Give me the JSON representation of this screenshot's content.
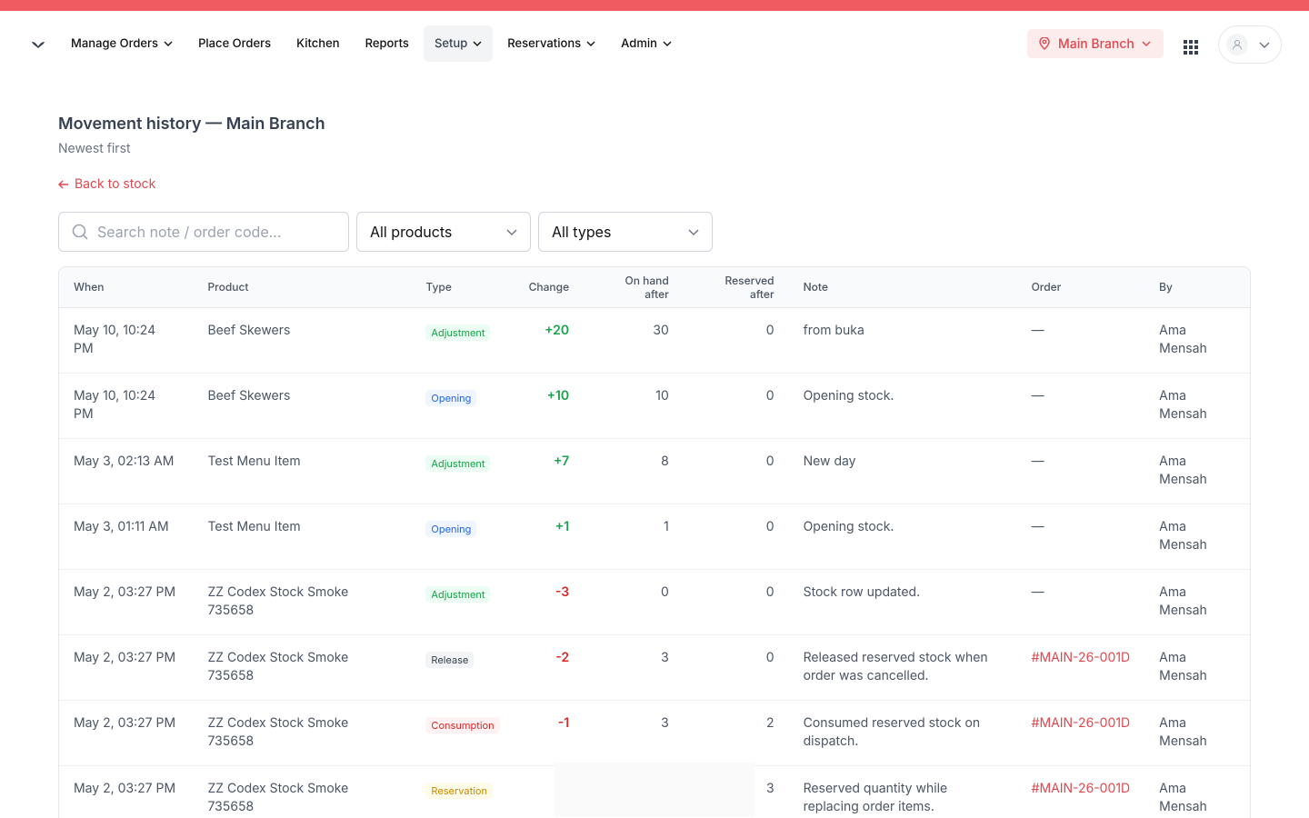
{
  "nav": {
    "items": [
      "Manage Orders",
      "Place Orders",
      "Kitchen",
      "Reports",
      "Setup",
      "Reservations",
      "Admin"
    ],
    "branch": "Main Branch"
  },
  "header": {
    "title": "Movement history — Main Branch",
    "subtitle": "Newest first",
    "back": "Back to stock"
  },
  "filters": {
    "search_placeholder": "Search note / order code...",
    "product": "All products",
    "type": "All types"
  },
  "table": {
    "columns": [
      "When",
      "Product",
      "Type",
      "Change",
      "On hand after",
      "Reserved after",
      "Note",
      "Order",
      "By"
    ],
    "rows": [
      {
        "when": "May 10, 10:24 PM",
        "product": "Beef Skewers",
        "type": "Adjustment",
        "badge": "green",
        "change": "+20",
        "change_color": "#16a34a",
        "on_hand": "30",
        "reserved": "0",
        "note": "from buka",
        "order": "—",
        "by": "Ama Mensah"
      },
      {
        "when": "May 10, 10:24 PM",
        "product": "Beef Skewers",
        "type": "Opening",
        "badge": "blue",
        "change": "+10",
        "change_color": "#16a34a",
        "on_hand": "10",
        "reserved": "0",
        "note": "Opening stock.",
        "order": "—",
        "by": "Ama Mensah"
      },
      {
        "when": "May 3, 02:13 AM",
        "product": "Test Menu Item",
        "type": "Adjustment",
        "badge": "green",
        "change": "+7",
        "change_color": "#16a34a",
        "on_hand": "8",
        "reserved": "0",
        "note": "New day",
        "order": "—",
        "by": "Ama Mensah"
      },
      {
        "when": "May 3, 01:11 AM",
        "product": "Test Menu Item",
        "type": "Opening",
        "badge": "blue",
        "change": "+1",
        "change_color": "#16a34a",
        "on_hand": "1",
        "reserved": "0",
        "note": "Opening stock.",
        "order": "—",
        "by": "Ama Mensah"
      },
      {
        "when": "May 2, 03:27 PM",
        "product": "ZZ Codex Stock Smoke 735658",
        "type": "Adjustment",
        "badge": "green",
        "change": "-3",
        "change_color": "#dc2626",
        "on_hand": "0",
        "reserved": "0",
        "note": "Stock row updated.",
        "order": "—",
        "by": "Ama Mensah"
      },
      {
        "when": "May 2, 03:27 PM",
        "product": "ZZ Codex Stock Smoke 735658",
        "type": "Release",
        "badge": "gray",
        "change": "-2",
        "change_color": "#dc2626",
        "on_hand": "3",
        "reserved": "0",
        "note": "Released reserved stock when order was cancelled.",
        "order": "#MAIN-26-001D",
        "by": "Ama Mensah"
      },
      {
        "when": "May 2, 03:27 PM",
        "product": "ZZ Codex Stock Smoke 735658",
        "type": "Consumption",
        "badge": "red",
        "change": "-1",
        "change_color": "#dc2626",
        "on_hand": "3",
        "reserved": "2",
        "note": "Consumed reserved stock on dispatch.",
        "order": "#MAIN-26-001D",
        "by": "Ama Mensah"
      },
      {
        "when": "May 2, 03:27 PM",
        "product": "ZZ Codex Stock Smoke 735658",
        "type": "Reservation",
        "badge": "amber",
        "change": "+",
        "change_color": "#16a34a",
        "reserved": "3",
        "note": "Reserved quantity while replacing order items.",
        "order": "#MAIN-26-001D",
        "by": "Ama Mensah"
      }
    ]
  }
}
